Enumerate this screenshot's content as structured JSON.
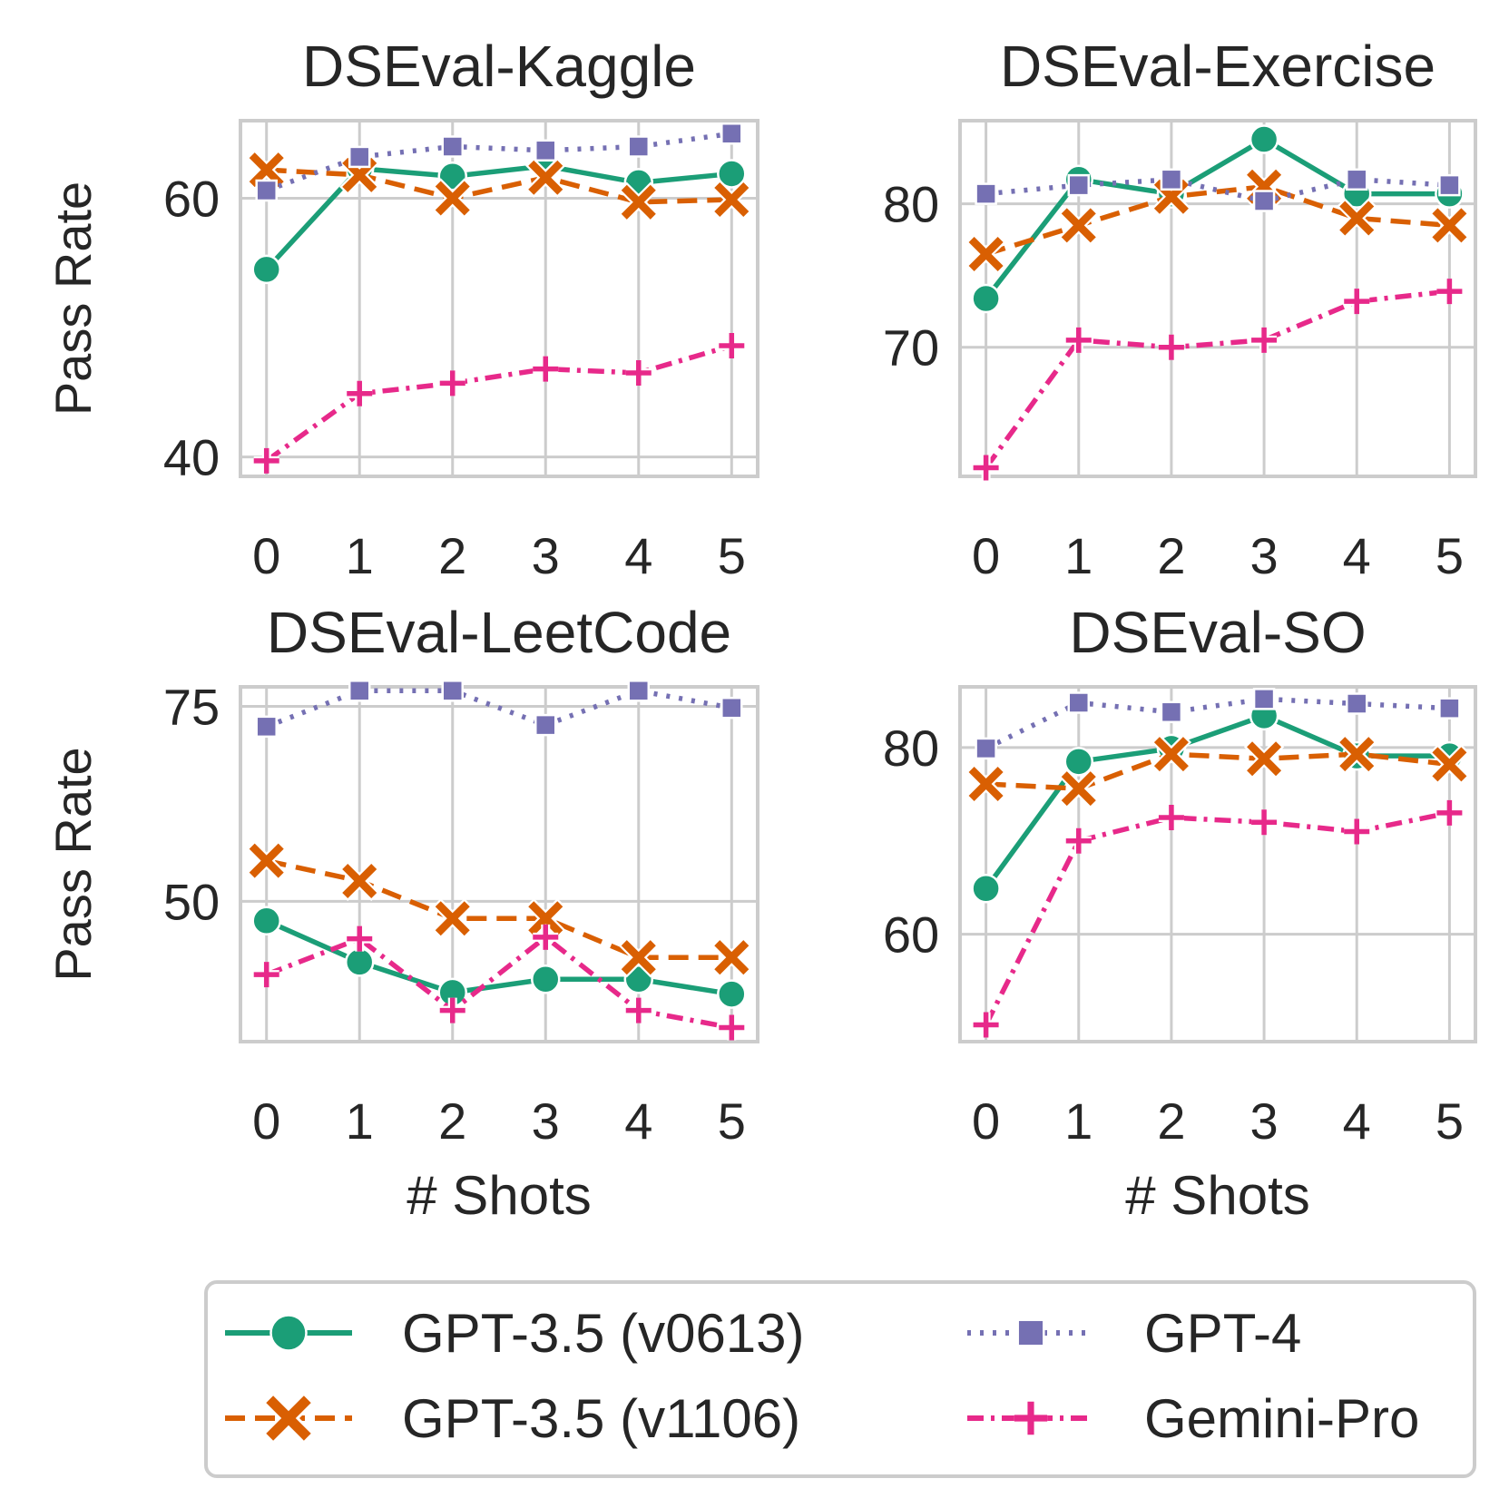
{
  "legend": {
    "placement": "bottom-center",
    "columns": 2
  },
  "styles": {
    "GPT-3.5 (v0613)": {
      "color": "#1b9e77",
      "dash": "",
      "marker": "circle"
    },
    "GPT-3.5 (v1106)": {
      "color": "#d95f02",
      "dash": "22,11",
      "marker": "x"
    },
    "GPT-4": {
      "color": "#7570b3",
      "dash": "4,10",
      "marker": "square"
    },
    "Gemini-Pro": {
      "color": "#e7298a",
      "dash": "18,8,4,8",
      "marker": "plus"
    }
  },
  "chart_data": [
    {
      "type": "line",
      "title": "DSEval-Kaggle",
      "xlabel": "",
      "ylabel": "Pass Rate",
      "x": [
        0,
        1,
        2,
        3,
        4,
        5
      ],
      "xticks": [
        "0",
        "1",
        "2",
        "3",
        "4",
        "5"
      ],
      "yticks": [
        40,
        60
      ],
      "ylim": [
        38.5,
        66
      ],
      "grid": true,
      "series": [
        {
          "name": "GPT-3.5 (v0613)",
          "values": [
            54.5,
            62.3,
            61.7,
            62.5,
            61.2,
            61.9
          ]
        },
        {
          "name": "GPT-3.5 (v1106)",
          "values": [
            62.2,
            61.8,
            60.0,
            61.6,
            59.7,
            59.9
          ]
        },
        {
          "name": "GPT-4",
          "values": [
            60.6,
            63.2,
            64.0,
            63.7,
            64.0,
            65.0
          ]
        },
        {
          "name": "Gemini-Pro",
          "values": [
            39.7,
            44.9,
            45.7,
            46.8,
            46.5,
            48.6
          ]
        }
      ]
    },
    {
      "type": "line",
      "title": "DSEval-Exercise",
      "xlabel": "",
      "ylabel": "",
      "x": [
        0,
        1,
        2,
        3,
        4,
        5
      ],
      "xticks": [
        "0",
        "1",
        "2",
        "3",
        "4",
        "5"
      ],
      "yticks": [
        70,
        80
      ],
      "ylim": [
        61,
        85.8
      ],
      "grid": true,
      "series": [
        {
          "name": "GPT-3.5 (v0613)",
          "values": [
            73.4,
            81.7,
            80.7,
            84.5,
            80.7,
            80.7
          ]
        },
        {
          "name": "GPT-3.5 (v1106)",
          "values": [
            76.5,
            78.5,
            80.5,
            81.2,
            79.0,
            78.5
          ]
        },
        {
          "name": "GPT-4",
          "values": [
            80.7,
            81.3,
            81.7,
            80.2,
            81.7,
            81.3
          ]
        },
        {
          "name": "Gemini-Pro",
          "values": [
            61.6,
            70.5,
            70.0,
            70.5,
            73.2,
            73.9
          ]
        }
      ]
    },
    {
      "type": "line",
      "title": "DSEval-LeetCode",
      "xlabel": "# Shots",
      "ylabel": "Pass Rate",
      "x": [
        0,
        1,
        2,
        3,
        4,
        5
      ],
      "xticks": [
        "0",
        "1",
        "2",
        "3",
        "4",
        "5"
      ],
      "yticks": [
        50,
        75
      ],
      "ylim": [
        32,
        77.5
      ],
      "grid": true,
      "series": [
        {
          "name": "GPT-3.5 (v0613)",
          "values": [
            47.5,
            42.2,
            38.3,
            40.0,
            40.0,
            38.1
          ]
        },
        {
          "name": "GPT-3.5 (v1106)",
          "values": [
            55.2,
            52.6,
            47.8,
            47.8,
            42.8,
            42.8
          ]
        },
        {
          "name": "GPT-4",
          "values": [
            72.4,
            77.0,
            77.0,
            72.6,
            77.0,
            74.8
          ]
        },
        {
          "name": "Gemini-Pro",
          "values": [
            40.6,
            45.2,
            36.0,
            45.4,
            36.0,
            33.8
          ]
        }
      ]
    },
    {
      "type": "line",
      "title": "DSEval-SO",
      "xlabel": "# Shots",
      "ylabel": "",
      "x": [
        0,
        1,
        2,
        3,
        4,
        5
      ],
      "xticks": [
        "0",
        "1",
        "2",
        "3",
        "4",
        "5"
      ],
      "yticks": [
        60,
        80
      ],
      "ylim": [
        48.5,
        86.5
      ],
      "grid": true,
      "series": [
        {
          "name": "GPT-3.5 (v0613)",
          "values": [
            64.9,
            78.5,
            79.9,
            83.4,
            79.1,
            79.1
          ]
        },
        {
          "name": "GPT-3.5 (v1106)",
          "values": [
            76.1,
            75.6,
            79.3,
            78.8,
            79.3,
            78.2
          ]
        },
        {
          "name": "GPT-4",
          "values": [
            79.9,
            84.8,
            83.8,
            85.2,
            84.7,
            84.2
          ]
        },
        {
          "name": "Gemini-Pro",
          "values": [
            50.3,
            70.0,
            72.5,
            72.0,
            71.0,
            73.0
          ]
        }
      ]
    }
  ]
}
